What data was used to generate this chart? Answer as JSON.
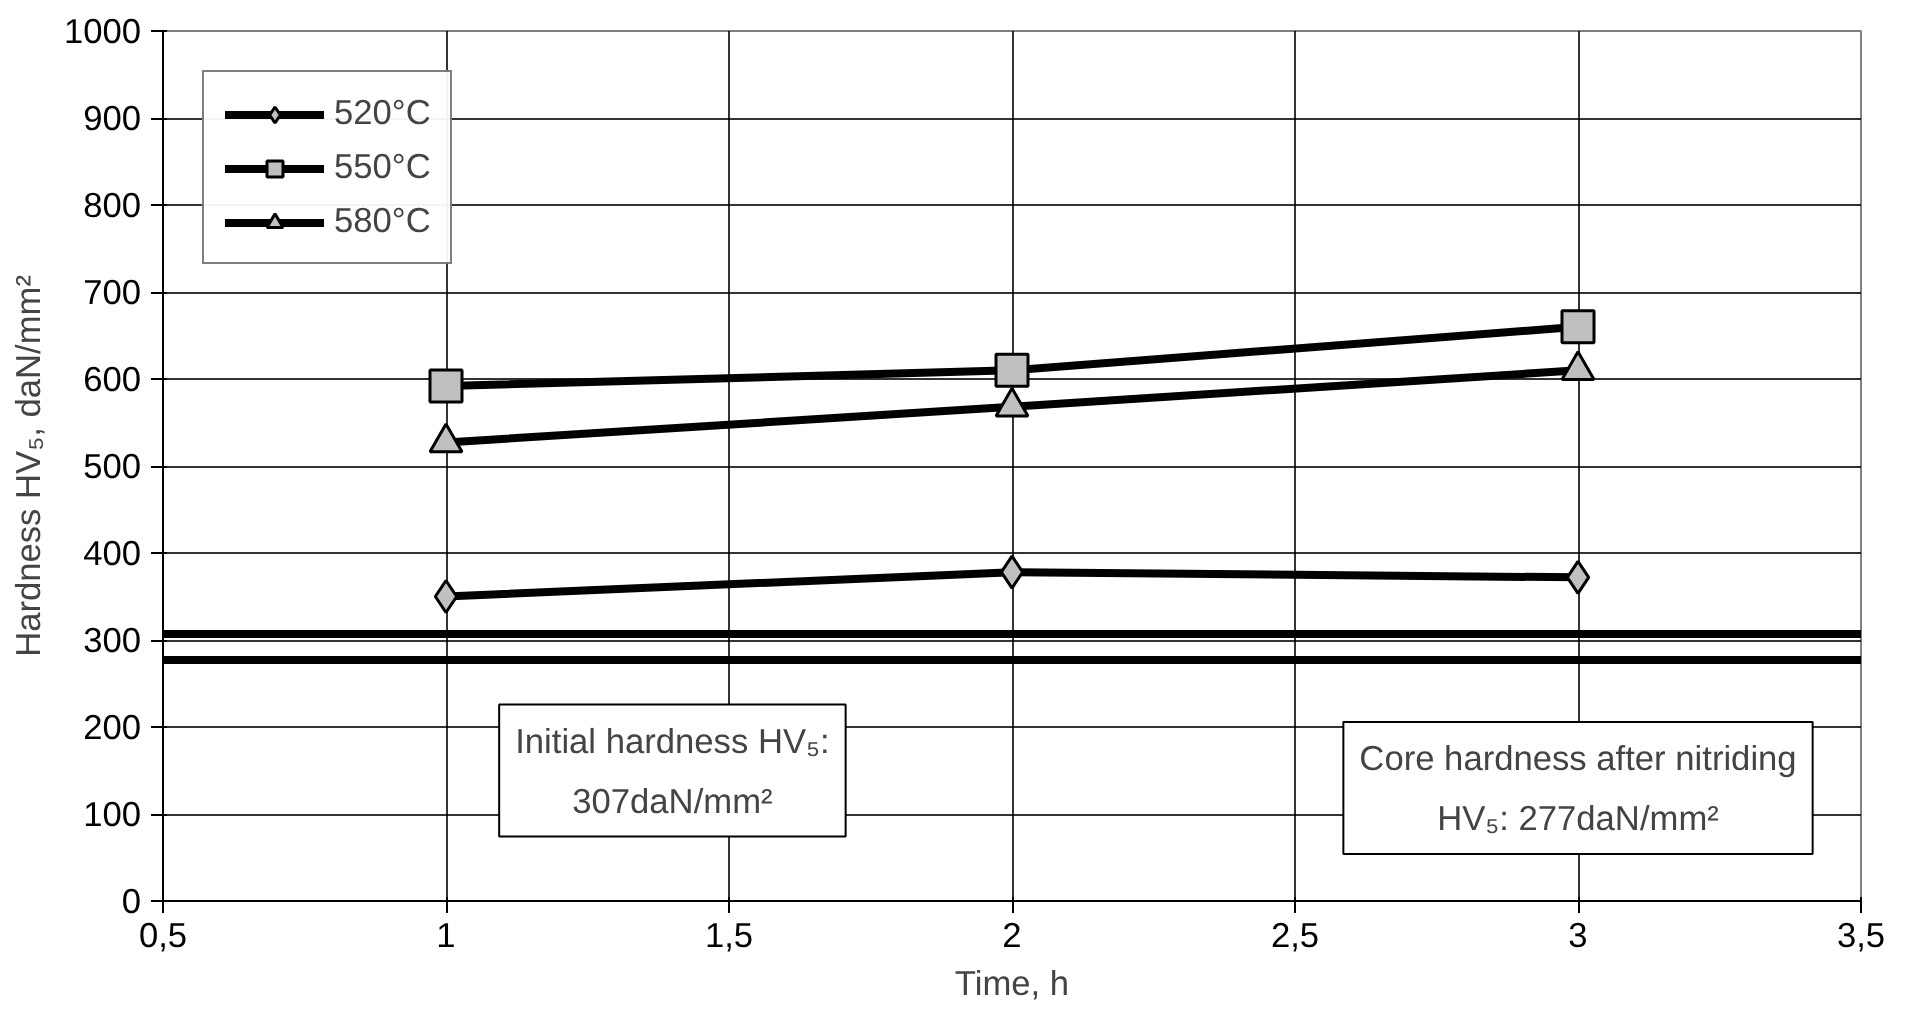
{
  "chart_data": {
    "type": "line",
    "xlabel": "Time, h",
    "ylabel": "Hardness HV₅, daN/mm²",
    "x": [
      1,
      2,
      3
    ],
    "series": [
      {
        "name": "520°C",
        "color": "#000000",
        "marker": "diamond",
        "values": [
          350,
          378,
          372
        ]
      },
      {
        "name": "550°C",
        "color": "#000000",
        "marker": "square",
        "values": [
          592,
          610,
          660
        ]
      },
      {
        "name": "580°C",
        "color": "#000000",
        "marker": "triangle",
        "values": [
          527,
          568,
          610
        ]
      }
    ],
    "xlim": [
      0.5,
      3.5
    ],
    "ylim": [
      0,
      1000
    ],
    "xticks": [
      {
        "value": 0.5,
        "label": "0,5"
      },
      1,
      {
        "value": 1.5,
        "label": "1,5"
      },
      2,
      {
        "value": 2.5,
        "label": "2,5"
      },
      3,
      {
        "value": 3.5,
        "label": "3,5"
      }
    ],
    "yticks": [
      0,
      100,
      200,
      300,
      400,
      500,
      600,
      700,
      800,
      900,
      1000
    ],
    "ref_lines": [
      {
        "axis": "y",
        "value": 307,
        "label": "Initial hardness HV₅:\n307daN/mm²",
        "color": "#000000"
      },
      {
        "axis": "y",
        "value": 277,
        "label": "Core hardness after nitriding\nHV₅: 277daN/mm²",
        "color": "#000000"
      }
    ],
    "grid": true,
    "legend": "top left",
    "line_style": "solid"
  }
}
